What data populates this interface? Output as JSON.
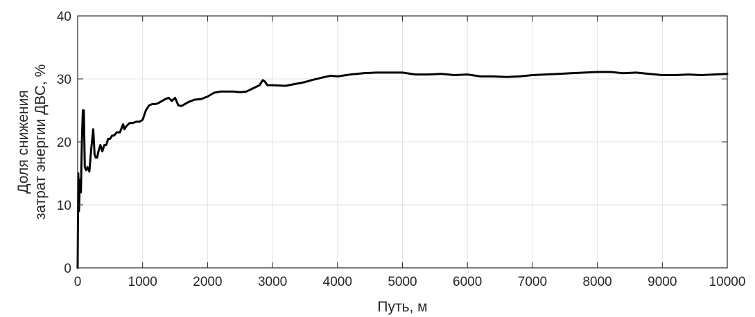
{
  "chart_data": {
    "type": "line",
    "title": "",
    "xlabel": "Путь, м",
    "ylabel": [
      "Доля снижения",
      "затрат энергии ДВС, %"
    ],
    "xlim": [
      0,
      10000
    ],
    "ylim": [
      0,
      40
    ],
    "xticks": [
      0,
      1000,
      2000,
      3000,
      4000,
      5000,
      6000,
      7000,
      8000,
      9000,
      10000
    ],
    "yticks": [
      0,
      10,
      20,
      30,
      40
    ],
    "xtick_labels": [
      "0",
      "1000",
      "2000",
      "3000",
      "4000",
      "5000",
      "6000",
      "7000",
      "8000",
      "9000",
      "10000"
    ],
    "ytick_labels": [
      "0",
      "10",
      "20",
      "30",
      "40"
    ],
    "grid": true,
    "legend": "none",
    "line_color": "#000000",
    "series": [
      {
        "x": [
          0,
          10,
          20,
          35,
          50,
          65,
          80,
          95,
          110,
          130,
          150,
          180,
          210,
          240,
          260,
          280,
          300,
          320,
          350,
          380,
          410,
          440,
          470,
          500,
          530,
          560,
          600,
          650,
          700,
          720,
          750,
          800,
          850,
          900,
          950,
          1000,
          1050,
          1100,
          1150,
          1200,
          1250,
          1300,
          1350,
          1400,
          1450,
          1500,
          1550,
          1600,
          1650,
          1700,
          1750,
          1800,
          1900,
          2000,
          2100,
          2200,
          2300,
          2400,
          2500,
          2600,
          2700,
          2800,
          2850,
          2880,
          2920,
          3000,
          3200,
          3400,
          3500,
          3600,
          3800,
          3900,
          4000,
          4200,
          4400,
          4600,
          4800,
          5000,
          5200,
          5400,
          5600,
          5800,
          6000,
          6200,
          6400,
          6600,
          6800,
          7000,
          7200,
          7400,
          7600,
          7800,
          8000,
          8200,
          8400,
          8600,
          8800,
          9000,
          9200,
          9400,
          9600,
          9800,
          10000
        ],
        "y": [
          0,
          15,
          9,
          14,
          12,
          20,
          25,
          25,
          16,
          15.5,
          16,
          15.3,
          19,
          22,
          18,
          17.5,
          17.5,
          18.5,
          19.5,
          18.5,
          19.5,
          19.5,
          20.5,
          20.5,
          21,
          21,
          21.5,
          21.5,
          22.8,
          22,
          22.5,
          23,
          23,
          23.2,
          23.2,
          23.5,
          25,
          25.8,
          26,
          26,
          26.2,
          26.5,
          26.8,
          27,
          26.5,
          27,
          25.8,
          25.7,
          26,
          26.3,
          26.5,
          26.7,
          26.8,
          27.2,
          27.8,
          28,
          28,
          28,
          27.9,
          28,
          28.5,
          29,
          29.8,
          29.6,
          29,
          29,
          28.9,
          29.3,
          29.5,
          29.8,
          30.3,
          30.5,
          30.4,
          30.7,
          30.9,
          31,
          31,
          31,
          30.7,
          30.7,
          30.8,
          30.6,
          30.7,
          30.4,
          30.4,
          30.3,
          30.4,
          30.6,
          30.7,
          30.8,
          30.9,
          31,
          31.1,
          31.1,
          30.9,
          31,
          30.8,
          30.6,
          30.6,
          30.7,
          30.6,
          30.7,
          30.8
        ]
      }
    ]
  }
}
